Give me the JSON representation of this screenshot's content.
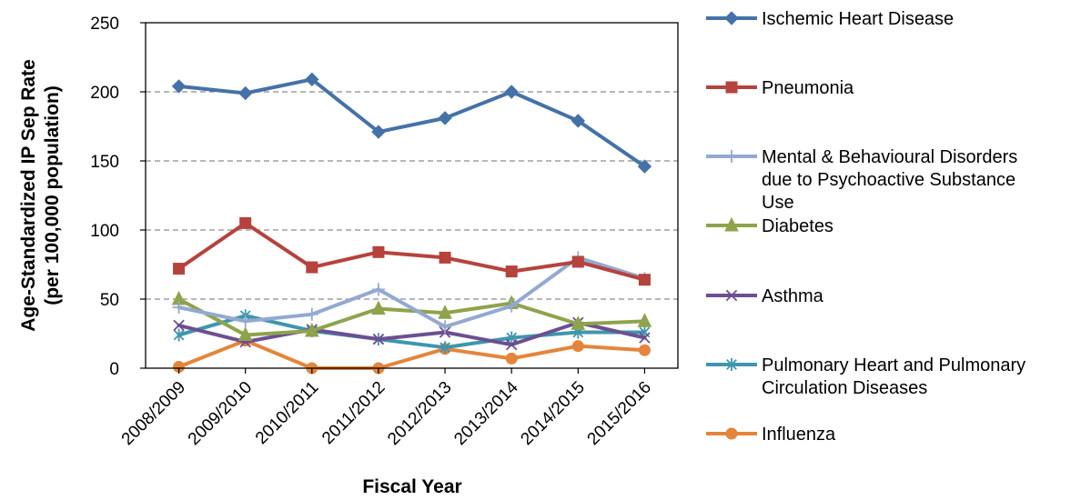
{
  "chart_data": {
    "type": "line",
    "title": "",
    "xlabel": "Fiscal Year",
    "ylabel": [
      "Age-Standardized IP Sep Rate",
      "(per 100,000 population)"
    ],
    "ylim": [
      0,
      250
    ],
    "yticks": [
      0,
      50,
      100,
      150,
      200,
      250
    ],
    "grid": true,
    "legend_position": "right",
    "categories": [
      "2008/2009",
      "2009/2010",
      "2010/2011",
      "2011/2012",
      "2012/2013",
      "2013/2014",
      "2014/2015",
      "2015/2016"
    ],
    "series": [
      {
        "name": [
          "Ischemic Heart Disease"
        ],
        "color": "#4472a8",
        "marker": "diamond",
        "values": [
          204,
          199,
          209,
          171,
          181,
          200,
          179,
          146
        ]
      },
      {
        "name": [
          "Pneumonia"
        ],
        "color": "#b6423d",
        "marker": "square",
        "values": [
          72,
          105,
          73,
          84,
          80,
          70,
          77,
          64
        ]
      },
      {
        "name": [
          "Mental & Behavioural Disorders",
          "due to Psychoactive Substance",
          "Use"
        ],
        "color": "#93a9d1",
        "marker": "plus",
        "values": [
          44,
          34,
          39,
          57,
          30,
          45,
          80,
          65
        ]
      },
      {
        "name": [
          "Diabetes"
        ],
        "color": "#8ea34b",
        "marker": "triangle",
        "values": [
          50,
          24,
          27,
          43,
          40,
          47,
          32,
          34
        ]
      },
      {
        "name": [
          "Asthma"
        ],
        "color": "#6d4f91",
        "marker": "x",
        "values": [
          31,
          19,
          28,
          21,
          26,
          17,
          33,
          22
        ]
      },
      {
        "name": [
          "Pulmonary Heart and Pulmonary",
          "Circulation Diseases"
        ],
        "color": "#3f96ad",
        "marker": "asterisk",
        "values": [
          24,
          38,
          27,
          21,
          15,
          22,
          26,
          26
        ]
      },
      {
        "name": [
          "Influenza"
        ],
        "color": "#e4853b",
        "marker": "circle",
        "values": [
          1,
          20,
          0,
          0,
          14,
          7,
          16,
          13
        ]
      }
    ]
  }
}
